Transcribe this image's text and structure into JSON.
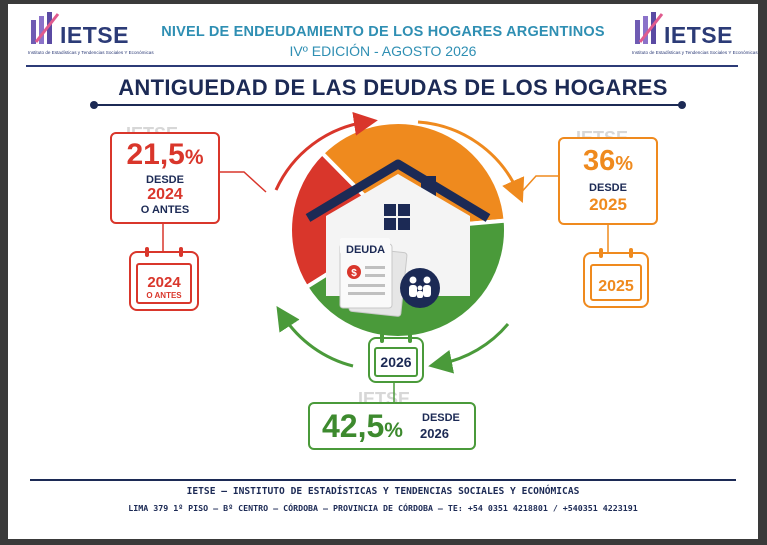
{
  "header": {
    "logo_text": "IETSE",
    "logo_subtext": "Instituto de Estadísticas y Tendencias Sociales Y Económicas",
    "title": "NIVEL DE ENDEUDAMIENTO DE LOS HOGARES ARGENTINOS",
    "subtitle": "IVº EDICIÓN - AGOSTO 2026"
  },
  "main_title": "ANTIGUEDAD DE LAS DEUDAS DE LOS HOGARES",
  "chart_data": {
    "type": "pie",
    "title": "ANTIGUEDAD DE LAS DEUDAS DE LOS HOGARES",
    "slices": [
      {
        "label_line1": "DESDE",
        "label_line2": "2024",
        "label_line3": "O ANTES",
        "value": 21.5,
        "value_text": "21,5",
        "color": "#d9362b",
        "calendar_year": "2024",
        "calendar_note": "O ANTES"
      },
      {
        "label_line1": "DESDE",
        "label_line2": "2025",
        "value": 36,
        "value_text": "36",
        "color": "#ef8a1e",
        "calendar_year": "2025"
      },
      {
        "label_line1": "DESDE",
        "label_line2": "2026",
        "value": 42.5,
        "value_text": "42,5",
        "color": "#4a9a3a",
        "calendar_year": "2026"
      }
    ],
    "percent_symbol": "%",
    "center_label": "DEUDA",
    "center_icon_label": "$"
  },
  "icons": [
    "house-icon",
    "debt-document-icon",
    "family-icon",
    "calendar-icon",
    "arrow-icon"
  ],
  "footer": {
    "line1": "IETSE – INSTITUTO DE ESTADÍSTICAS Y TENDENCIAS SOCIALES Y ECONÓMICAS",
    "line2": "LIMA 379 1º PISO – Bº CENTRO – CÓRDOBA – PROVINCIA DE CÓRDOBA – TE: +54 0351 4218801 / +540351 4223191"
  },
  "watermark_text": "IETSE",
  "colors": {
    "navy": "#1c2a55",
    "teal": "#2f8fb3",
    "red": "#d9362b",
    "orange": "#ef8a1e",
    "green": "#4a9a3a"
  }
}
